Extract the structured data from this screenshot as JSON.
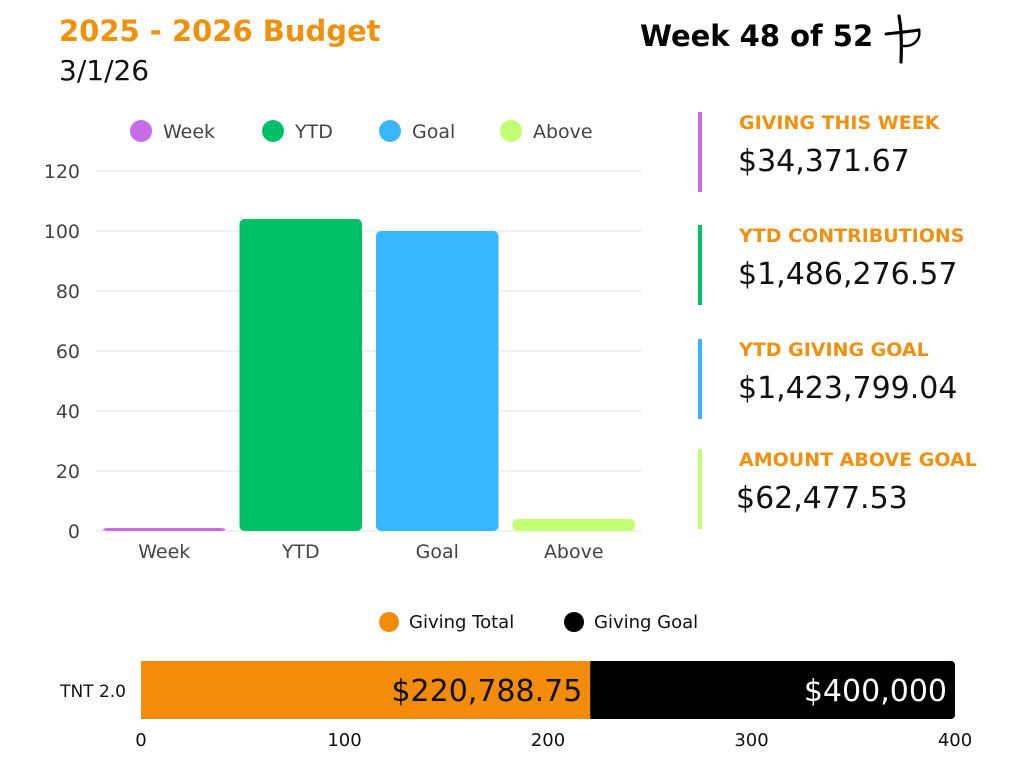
{
  "header": {
    "title": "2025 - 2026 Budget",
    "date": "3/1/26",
    "week": "Week 48 of 52",
    "logo_icon": "cross-logo-icon"
  },
  "colors": {
    "accent": "#f0900f",
    "week": "#c86ce8",
    "ytd": "#00c066",
    "goal": "#38b6ff",
    "above": "#c3ff73",
    "giving_total": "#f28c0a",
    "giving_goal": "#000000"
  },
  "metrics": [
    {
      "label": "GIVING THIS WEEK",
      "value": "$34,371.67",
      "color": "#c86ce8"
    },
    {
      "label": "YTD CONTRIBUTIONS",
      "value": "$1,486,276.57",
      "color": "#00c066"
    },
    {
      "label": "YTD GIVING GOAL",
      "value": "$1,423,799.04",
      "color": "#38b6ff"
    },
    {
      "label": "AMOUNT ABOVE GOAL",
      "value": "$62,477.53",
      "color": "#c3ff73"
    }
  ],
  "chart_data": [
    {
      "type": "bar",
      "categories": [
        "Week",
        "YTD",
        "Goal",
        "Above"
      ],
      "values": [
        1,
        104,
        100,
        4
      ],
      "colors": [
        "#c86ce8",
        "#00c066",
        "#38b6ff",
        "#c3ff73"
      ],
      "legend": [
        "Week",
        "YTD",
        "Goal",
        "Above"
      ],
      "legend_position": "top",
      "ylim": [
        0,
        120
      ],
      "yticks": [
        0,
        20,
        40,
        60,
        80,
        100,
        120
      ],
      "grid": true
    },
    {
      "type": "bar",
      "orientation": "horizontal",
      "stacked": true,
      "categories": [
        "TNT 2.0"
      ],
      "series": [
        {
          "name": "Giving Total",
          "values": [
            220.78875
          ],
          "label": "$220,788.75",
          "color": "#f28c0a"
        },
        {
          "name": "Giving Goal",
          "values": [
            179.21125
          ],
          "label": "$400,000",
          "color": "#000000"
        }
      ],
      "xlim": [
        0,
        400
      ],
      "xticks": [
        0,
        100,
        200,
        300,
        400
      ],
      "legend_position": "top"
    }
  ]
}
